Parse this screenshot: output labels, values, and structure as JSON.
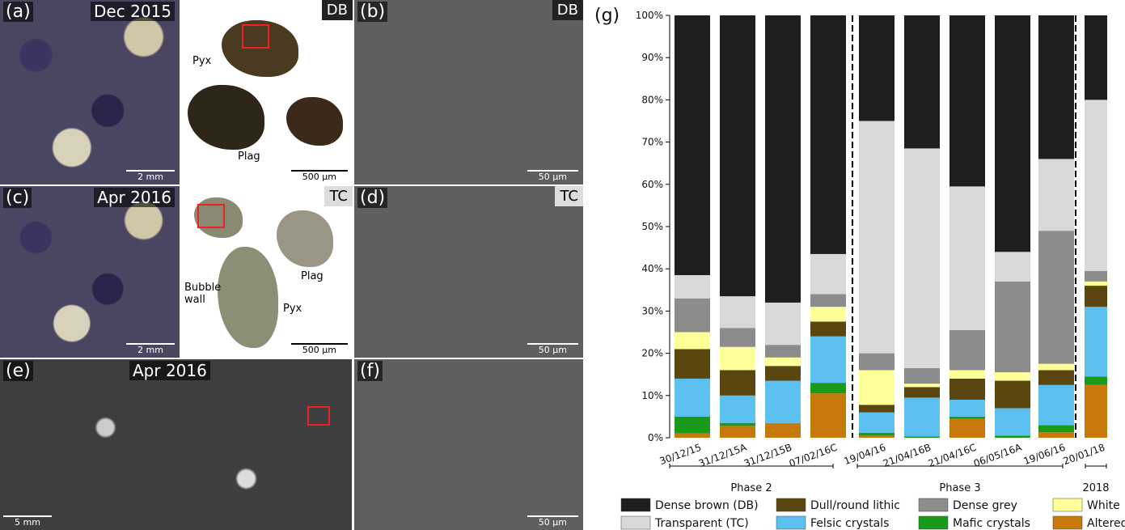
{
  "panels": [
    {
      "label": "(a)",
      "title": "Dec 2015",
      "scale": "2 mm"
    },
    {
      "tag": "DB",
      "scale": "500 µm",
      "annotations": [
        "Pyx",
        "Plag"
      ]
    },
    {
      "label": "(b)",
      "tag": "DB",
      "scale": "50 µm"
    },
    {
      "label": "(c)",
      "title": "Apr 2016",
      "scale": "2 mm"
    },
    {
      "tag": "TC",
      "scale": "500 µm",
      "annotations": [
        "Plag",
        "Bubble wall",
        "Pyx"
      ]
    },
    {
      "label": "(d)",
      "tag": "TC",
      "scale": "50 µm"
    },
    {
      "label": "(e)",
      "title": "Apr 2016",
      "scale": "5 mm"
    },
    {
      "label": "(f)",
      "scale": "50 µm"
    }
  ],
  "chart_data": {
    "type": "stacked_bar",
    "panel_label": "(g)",
    "categories": [
      "30/12/15",
      "31/12/15A",
      "31/12/15B",
      "07/02/16C",
      "19/04/16",
      "21/04/16B",
      "21/04/16C",
      "06/05/16A",
      "19/06/16",
      "20/01/18"
    ],
    "groups": [
      "Phase 2",
      "Phase 3",
      "2018"
    ],
    "ylim": [
      0,
      100
    ],
    "yticks": [
      {
        "value": 0,
        "label": "0%"
      },
      {
        "value": 10,
        "label": "10%"
      },
      {
        "value": 20,
        "label": "20%"
      },
      {
        "value": 30,
        "label": "30%"
      },
      {
        "value": 40,
        "label": "40%"
      },
      {
        "value": 50,
        "label": "50%"
      },
      {
        "value": 60,
        "label": "60%"
      },
      {
        "value": 70,
        "label": "70%"
      },
      {
        "value": 80,
        "label": "80%"
      },
      {
        "value": 90,
        "label": "90%"
      },
      {
        "value": 100,
        "label": "100%"
      }
    ],
    "series": [
      {
        "name": "Altered",
        "color": "#c8790c",
        "values": [
          1,
          2.8,
          3.5,
          10.5,
          0.5,
          0,
          4.5,
          0,
          1.3,
          12.5
        ]
      },
      {
        "name": "Mafic crystals",
        "color": "#1a9a1a",
        "values": [
          4,
          0.7,
          0,
          2.5,
          0.7,
          0.3,
          0.5,
          0.5,
          1.7,
          2
        ]
      },
      {
        "name": "Felsic crystals",
        "color": "#5bc0f0",
        "values": [
          9,
          6.5,
          10,
          11,
          4.8,
          9.2,
          4,
          6.5,
          9.5,
          16.5
        ]
      },
      {
        "name": "Dull/round lithic",
        "color": "#5c4610",
        "values": [
          7,
          6,
          3.5,
          3.5,
          1.8,
          2.5,
          5,
          6.5,
          3.5,
          5
        ]
      },
      {
        "name": "White",
        "color": "#ffff99",
        "values": [
          4,
          5.5,
          2,
          3.5,
          8.2,
          0.8,
          2,
          2,
          1.5,
          1
        ]
      },
      {
        "name": "Dense grey",
        "color": "#8c8c8c",
        "values": [
          8,
          4.5,
          3,
          3,
          4,
          3.7,
          9.5,
          21.5,
          31.5,
          2.5
        ]
      },
      {
        "name": "Transparent (TC)",
        "color": "#d9d9d9",
        "values": [
          5.5,
          7.5,
          10,
          9.5,
          55,
          52,
          34,
          7,
          17,
          40.5
        ]
      },
      {
        "name": "Dense brown (DB)",
        "color": "#1e1e1c",
        "values": [
          61.5,
          66.5,
          68,
          56.5,
          25,
          31.5,
          40.5,
          56,
          34,
          20
        ]
      }
    ]
  }
}
